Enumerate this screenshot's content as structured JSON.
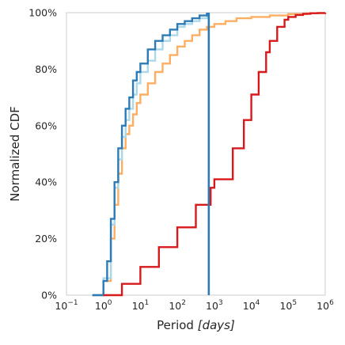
{
  "chart_data": {
    "type": "line",
    "xlabel_prefix": "Period ",
    "xlabel_unit": "[days]",
    "ylabel": "Normalized CDF",
    "xscale": "log",
    "xlim_log10": [
      -1,
      6
    ],
    "ylim": [
      0,
      100
    ],
    "grid": false,
    "legend": "none",
    "x_ticks": [
      {
        "base": "10",
        "exp": "−1"
      },
      {
        "base": "10",
        "exp": "0"
      },
      {
        "base": "10",
        "exp": "1"
      },
      {
        "base": "10",
        "exp": "2"
      },
      {
        "base": "10",
        "exp": "3"
      },
      {
        "base": "10",
        "exp": "4"
      },
      {
        "base": "10",
        "exp": "5"
      },
      {
        "base": "10",
        "exp": "6"
      }
    ],
    "y_ticks": [
      "0%",
      "20%",
      "40%",
      "60%",
      "80%",
      "100%"
    ],
    "series": [
      {
        "color": "#fdae61",
        "style": "step",
        "x_log10": [
          -0.3,
          0.0,
          0.2,
          0.3,
          0.4,
          0.5,
          0.6,
          0.7,
          0.8,
          0.9,
          1.0,
          1.2,
          1.4,
          1.6,
          1.8,
          2.0,
          2.2,
          2.4,
          2.6,
          2.8,
          3.0,
          3.3,
          3.6,
          4.0,
          4.5,
          5.0,
          5.5,
          6.0
        ],
        "y": [
          0,
          5,
          20,
          32,
          43,
          52,
          57,
          60,
          64,
          68,
          71,
          75,
          79,
          82,
          85,
          88,
          90,
          92,
          94,
          95,
          96,
          97,
          98,
          98.5,
          99,
          99.5,
          99.8,
          100
        ]
      },
      {
        "color": "#abd9e9",
        "style": "step",
        "x_log10": [
          -0.3,
          0.0,
          0.2,
          0.3,
          0.4,
          0.5,
          0.6,
          0.7,
          0.8,
          0.9,
          1.0,
          1.2,
          1.4,
          1.6,
          1.8,
          2.0,
          2.2,
          2.4,
          2.6,
          2.8
        ],
        "y": [
          0,
          6,
          25,
          38,
          48,
          56,
          62,
          66,
          71,
          75,
          79,
          83,
          87,
          90,
          92,
          95,
          96,
          97,
          98,
          100
        ]
      },
      {
        "color": "#2c7bb6",
        "style": "step",
        "x_log10": [
          -0.3,
          0.0,
          0.1,
          0.2,
          0.3,
          0.4,
          0.5,
          0.6,
          0.7,
          0.8,
          0.9,
          1.0,
          1.2,
          1.4,
          1.6,
          1.8,
          2.0,
          2.2,
          2.4,
          2.6,
          2.8
        ],
        "y": [
          0,
          5,
          12,
          27,
          40,
          52,
          60,
          66,
          70,
          76,
          79,
          82,
          87,
          90,
          92,
          94,
          96,
          97,
          98,
          99,
          100
        ]
      },
      {
        "color": "#d7191c",
        "style": "step",
        "x_log10": [
          0.0,
          0.5,
          1.0,
          1.5,
          2.0,
          2.5,
          2.9,
          3.0,
          3.5,
          3.8,
          4.0,
          4.2,
          4.4,
          4.5,
          4.7,
          4.9,
          5.0,
          5.2,
          5.4,
          5.6,
          5.8,
          6.0
        ],
        "y": [
          0,
          4,
          10,
          17,
          24,
          32,
          38,
          41,
          52,
          62,
          71,
          79,
          86,
          90,
          95,
          97.5,
          98.5,
          99.2,
          99.6,
          99.8,
          99.9,
          100
        ]
      }
    ],
    "vline": {
      "color": "#2c7bb6",
      "x_log10": 2.85
    }
  }
}
